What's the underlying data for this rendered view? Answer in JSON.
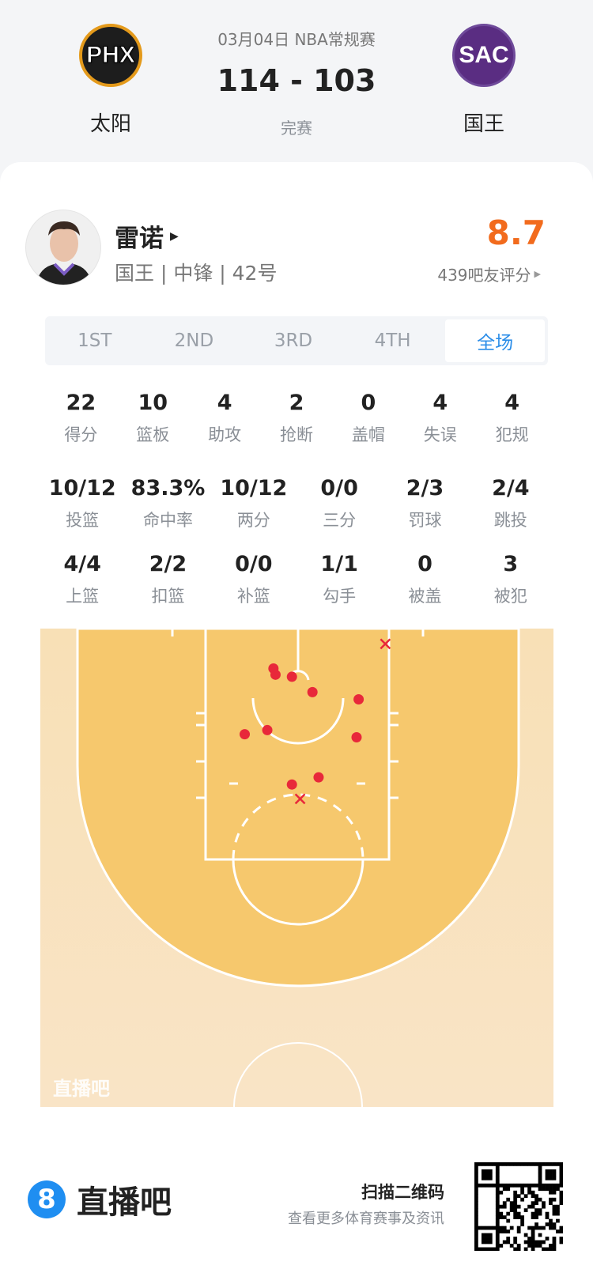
{
  "header": {
    "date_league": "03月04日 NBA常规赛",
    "score": "114 - 103",
    "status": "完赛",
    "home": {
      "abbr": "PHX",
      "name": "太阳"
    },
    "away": {
      "abbr": "SAC",
      "name": "国王"
    }
  },
  "player": {
    "name": "雷诺",
    "info": "国王 | 中锋 | 42号",
    "rating": "8.7",
    "rating_label": "439吧友评分",
    "rating_color": "#f26b1d"
  },
  "tabs": [
    {
      "label": "1ST"
    },
    {
      "label": "2ND"
    },
    {
      "label": "3RD"
    },
    {
      "label": "4TH"
    },
    {
      "label": "全场",
      "active": true
    }
  ],
  "stats_row1": [
    {
      "v": "22",
      "l": "得分"
    },
    {
      "v": "10",
      "l": "篮板"
    },
    {
      "v": "4",
      "l": "助攻"
    },
    {
      "v": "2",
      "l": "抢断"
    },
    {
      "v": "0",
      "l": "盖帽"
    },
    {
      "v": "4",
      "l": "失误"
    },
    {
      "v": "4",
      "l": "犯规"
    }
  ],
  "stats_row2": [
    {
      "v": "10/12",
      "l": "投篮"
    },
    {
      "v": "83.3%",
      "l": "命中率"
    },
    {
      "v": "10/12",
      "l": "两分"
    },
    {
      "v": "0/0",
      "l": "三分"
    },
    {
      "v": "2/3",
      "l": "罚球"
    },
    {
      "v": "2/4",
      "l": "跳投"
    }
  ],
  "stats_row3": [
    {
      "v": "4/4",
      "l": "上篮"
    },
    {
      "v": "2/2",
      "l": "扣篮"
    },
    {
      "v": "0/0",
      "l": "补篮"
    },
    {
      "v": "1/1",
      "l": "勾手"
    },
    {
      "v": "0",
      "l": "被盖"
    },
    {
      "v": "3",
      "l": "被犯"
    }
  ],
  "shot_chart": {
    "watermark": "直播吧",
    "units": "feet from basket",
    "made_color": "#e8283a",
    "shots": [
      {
        "x": -2.4,
        "y": -1.5,
        "made": true
      },
      {
        "x": -2.2,
        "y": -0.9,
        "made": true
      },
      {
        "x": -0.6,
        "y": -0.7,
        "made": true
      },
      {
        "x": 1.4,
        "y": 0.8,
        "made": true
      },
      {
        "x": 5.9,
        "y": 1.5,
        "made": true
      },
      {
        "x": -5.2,
        "y": 4.9,
        "made": true
      },
      {
        "x": -3.0,
        "y": 4.5,
        "made": true
      },
      {
        "x": 5.7,
        "y": 5.2,
        "made": true
      },
      {
        "x": -0.6,
        "y": 9.8,
        "made": true
      },
      {
        "x": 2.0,
        "y": 9.1,
        "made": true
      },
      {
        "x": 8.5,
        "y": -3.9,
        "made": false
      },
      {
        "x": 0.2,
        "y": 11.2,
        "made": false
      }
    ]
  },
  "footer": {
    "brand": "直播吧",
    "scan_title": "扫描二维码",
    "scan_sub": "查看更多体育赛事及资讯"
  }
}
